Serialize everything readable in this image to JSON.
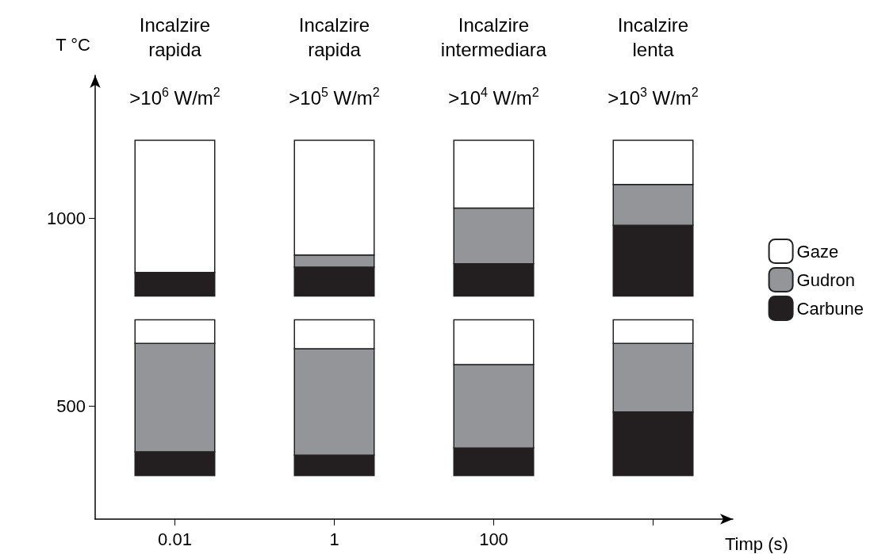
{
  "chart_data": {
    "type": "bar",
    "xlabel": "Timp (s)",
    "ylabel": "T °C",
    "categories": [
      "0.01",
      "1",
      "100",
      null
    ],
    "series": [
      {
        "name": "Carbune",
        "color": "#231f20",
        "base": [
          316,
          316,
          316,
          316
        ],
        "values": [
          63,
          54,
          73,
          169
        ]
      },
      {
        "name": "Gudron",
        "color": "#939598",
        "base": [
          379,
          370,
          389,
          485
        ],
        "values": [
          288,
          283,
          222,
          182
        ]
      },
      {
        "name": "Gaze",
        "color": "#ffffff",
        "base": [
          667,
          653,
          611,
          667
        ],
        "values": [
          63,
          77,
          119,
          63
        ]
      },
      {
        "color": "#231f20",
        "base": [
          793,
          793,
          793,
          793
        ],
        "values": [
          63,
          77,
          86,
          188
        ]
      },
      {
        "color": "#939598",
        "base": [
          null,
          870,
          879,
          981
        ],
        "values": [
          null,
          32,
          148,
          109
        ]
      },
      {
        "color": "#ffffff",
        "base": [
          856,
          902,
          1027,
          1090
        ],
        "values": [
          351,
          305,
          180,
          117
        ]
      }
    ],
    "ylim": [
      200,
      1380
    ],
    "yticks": [
      500,
      1000
    ],
    "legend": "right",
    "annotations": [
      "Incalzire\nrapida",
      ">10$^{6}$ W/m$^{2}$",
      "Incalzire\nrapida",
      ">10$^{5}$ W/m$^{2}$",
      "Incalzire\nintermediara",
      ">10$^{4}$ W/m$^{2}$",
      "Incalzire\nlenta",
      ">10$^{3}$ W/m$^{2}$"
    ]
  }
}
